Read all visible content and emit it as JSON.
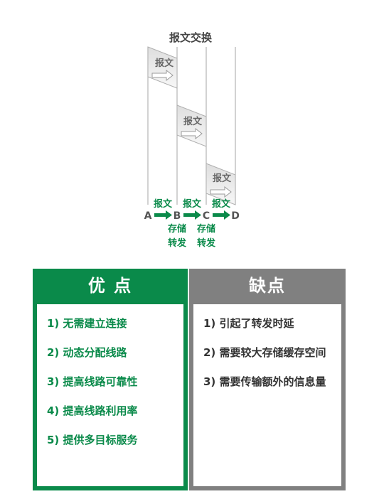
{
  "diagram": {
    "title": "报文交换",
    "message_label": "报文",
    "nodes": [
      "A",
      "B",
      "C",
      "D"
    ],
    "link_labels": [
      "报文",
      "报文",
      "报文"
    ],
    "store_forward_label": [
      "存储",
      "转发"
    ],
    "colors": {
      "accent": "#0a8a4a",
      "text": "#555555",
      "box_fill": "#d9d9d9",
      "line": "#b0b0b0"
    }
  },
  "pros": {
    "title": "优 点",
    "items": [
      "1) 无需建立连接",
      "2) 动态分配线路",
      "3) 提高线路可靠性",
      "4) 提高线路利用率",
      "5) 提供多目标服务"
    ],
    "color": "#0a8a4a"
  },
  "cons": {
    "title": "缺点",
    "items": [
      "1) 引起了转发时延",
      "2) 需要较大存储缓存空间",
      "3) 需要传输额外的信息量"
    ],
    "color": "#808080"
  }
}
